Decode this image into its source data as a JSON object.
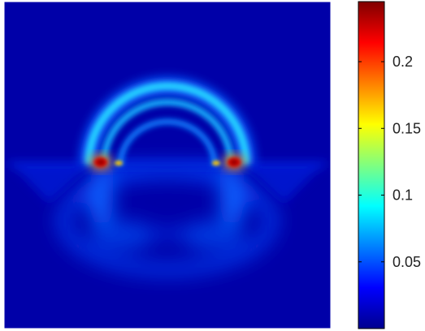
{
  "chart_data": {
    "type": "heatmap",
    "colormap": "jet",
    "grid": false,
    "legend": "colorbar-right",
    "colorbar": {
      "min": 0,
      "max": 0.245,
      "ticks": [
        0.05,
        0.1,
        0.15,
        0.2
      ],
      "tick_labels": [
        "0.05",
        "0.1",
        "0.15",
        "0.2"
      ]
    },
    "features": {
      "background_level": 0.005,
      "hot_spots": [
        {
          "name": "left-source",
          "value": 0.24
        },
        {
          "name": "left-inner-spot",
          "value": 0.18
        },
        {
          "name": "right-inner-spot",
          "value": 0.18
        },
        {
          "name": "right-source",
          "value": 0.24
        }
      ],
      "upper_arcs": [
        {
          "name": "outer-arc",
          "value": 0.11
        },
        {
          "name": "middle-arc",
          "value": 0.09
        },
        {
          "name": "inner-arc",
          "value": 0.07
        }
      ],
      "lower_halo_value": 0.04,
      "interface_line_value": 0.03
    }
  }
}
